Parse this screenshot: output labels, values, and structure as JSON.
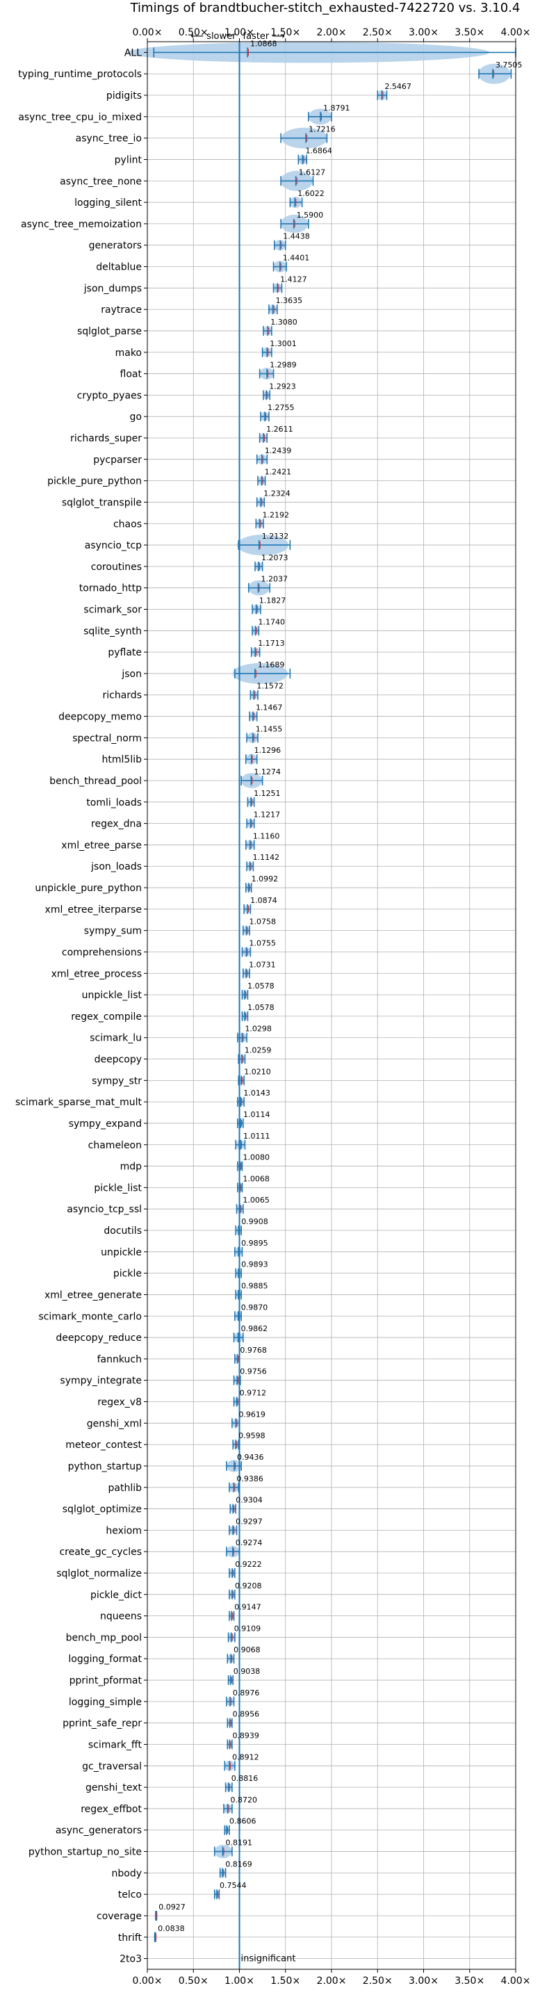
{
  "chart_data": {
    "type": "violin",
    "title": "Timings of brandtbucher-stitch_exhausted-7422720 vs. 3.10.4",
    "xlim": [
      0,
      4
    ],
    "xticks": [
      "0.00×",
      "0.50×",
      "1.00×",
      "1.50×",
      "2.00×",
      "2.50×",
      "3.00×",
      "3.50×",
      "4.00×"
    ],
    "xtick_values": [
      0,
      0.5,
      1,
      1.5,
      2,
      2.5,
      3,
      3.5,
      4
    ],
    "slower_label": "⟵ slower",
    "faster_label": "faster ⟶",
    "insignificant_label": "insignificant",
    "reference_line": 1.0,
    "grid": true,
    "colors": {
      "body": "#aecde8",
      "median": "#1f77b4",
      "mean": "#d62728",
      "refline": "#1f77b4"
    },
    "benchmarks": [
      {
        "name": "ALL",
        "value": 1.0868,
        "label": "1.0868",
        "lo": 0.07,
        "hi": 4.0
      },
      {
        "name": "typing_runtime_protocols",
        "value": 3.7505,
        "label": "3.7505",
        "lo": 3.6,
        "hi": 3.95
      },
      {
        "name": "pidigits",
        "value": 2.5467,
        "label": "2.5467",
        "lo": 2.5,
        "hi": 2.6
      },
      {
        "name": "async_tree_cpu_io_mixed",
        "value": 1.8791,
        "label": "1.8791",
        "lo": 1.75,
        "hi": 2.0
      },
      {
        "name": "async_tree_io",
        "value": 1.7216,
        "label": "1.7216",
        "lo": 1.45,
        "hi": 1.95
      },
      {
        "name": "pylint",
        "value": 1.6864,
        "label": "1.6864",
        "lo": 1.64,
        "hi": 1.73
      },
      {
        "name": "async_tree_none",
        "value": 1.6127,
        "label": "1.6127",
        "lo": 1.45,
        "hi": 1.8
      },
      {
        "name": "logging_silent",
        "value": 1.6022,
        "label": "1.6022",
        "lo": 1.55,
        "hi": 1.68
      },
      {
        "name": "async_tree_memoization",
        "value": 1.59,
        "label": "1.5900",
        "lo": 1.45,
        "hi": 1.75
      },
      {
        "name": "generators",
        "value": 1.4438,
        "label": "1.4438",
        "lo": 1.38,
        "hi": 1.5
      },
      {
        "name": "deltablue",
        "value": 1.4401,
        "label": "1.4401",
        "lo": 1.37,
        "hi": 1.51
      },
      {
        "name": "json_dumps",
        "value": 1.4127,
        "label": "1.4127",
        "lo": 1.37,
        "hi": 1.46
      },
      {
        "name": "raytrace",
        "value": 1.3635,
        "label": "1.3635",
        "lo": 1.32,
        "hi": 1.41
      },
      {
        "name": "sqlglot_parse",
        "value": 1.308,
        "label": "1.3080",
        "lo": 1.26,
        "hi": 1.35
      },
      {
        "name": "mako",
        "value": 1.3001,
        "label": "1.3001",
        "lo": 1.25,
        "hi": 1.35
      },
      {
        "name": "float",
        "value": 1.2989,
        "label": "1.2989",
        "lo": 1.22,
        "hi": 1.37
      },
      {
        "name": "crypto_pyaes",
        "value": 1.2923,
        "label": "1.2923",
        "lo": 1.26,
        "hi": 1.33
      },
      {
        "name": "go",
        "value": 1.2755,
        "label": "1.2755",
        "lo": 1.23,
        "hi": 1.32
      },
      {
        "name": "richards_super",
        "value": 1.2611,
        "label": "1.2611",
        "lo": 1.22,
        "hi": 1.3
      },
      {
        "name": "pycparser",
        "value": 1.2439,
        "label": "1.2439",
        "lo": 1.19,
        "hi": 1.3
      },
      {
        "name": "pickle_pure_python",
        "value": 1.2421,
        "label": "1.2421",
        "lo": 1.2,
        "hi": 1.28
      },
      {
        "name": "sqlglot_transpile",
        "value": 1.2324,
        "label": "1.2324",
        "lo": 1.19,
        "hi": 1.27
      },
      {
        "name": "chaos",
        "value": 1.2192,
        "label": "1.2192",
        "lo": 1.18,
        "hi": 1.26
      },
      {
        "name": "asyncio_tcp",
        "value": 1.2132,
        "label": "1.2132",
        "lo": 0.99,
        "hi": 1.55
      },
      {
        "name": "coroutines",
        "value": 1.2073,
        "label": "1.2073",
        "lo": 1.17,
        "hi": 1.25
      },
      {
        "name": "tornado_http",
        "value": 1.2037,
        "label": "1.2037",
        "lo": 1.1,
        "hi": 1.33
      },
      {
        "name": "scimark_sor",
        "value": 1.1827,
        "label": "1.1827",
        "lo": 1.14,
        "hi": 1.23
      },
      {
        "name": "sqlite_synth",
        "value": 1.174,
        "label": "1.1740",
        "lo": 1.14,
        "hi": 1.21
      },
      {
        "name": "pyflate",
        "value": 1.1713,
        "label": "1.1713",
        "lo": 1.13,
        "hi": 1.22
      },
      {
        "name": "json",
        "value": 1.1689,
        "label": "1.1689",
        "lo": 0.95,
        "hi": 1.55
      },
      {
        "name": "richards",
        "value": 1.1572,
        "label": "1.1572",
        "lo": 1.12,
        "hi": 1.2
      },
      {
        "name": "deepcopy_memo",
        "value": 1.1467,
        "label": "1.1467",
        "lo": 1.11,
        "hi": 1.19
      },
      {
        "name": "spectral_norm",
        "value": 1.1455,
        "label": "1.1455",
        "lo": 1.08,
        "hi": 1.2
      },
      {
        "name": "html5lib",
        "value": 1.1296,
        "label": "1.1296",
        "lo": 1.07,
        "hi": 1.19
      },
      {
        "name": "bench_thread_pool",
        "value": 1.1274,
        "label": "1.1274",
        "lo": 1.02,
        "hi": 1.25
      },
      {
        "name": "tomli_loads",
        "value": 1.1251,
        "label": "1.1251",
        "lo": 1.09,
        "hi": 1.16
      },
      {
        "name": "regex_dna",
        "value": 1.1217,
        "label": "1.1217",
        "lo": 1.08,
        "hi": 1.16
      },
      {
        "name": "xml_etree_parse",
        "value": 1.116,
        "label": "1.1160",
        "lo": 1.07,
        "hi": 1.16
      },
      {
        "name": "json_loads",
        "value": 1.1142,
        "label": "1.1142",
        "lo": 1.08,
        "hi": 1.15
      },
      {
        "name": "unpickle_pure_python",
        "value": 1.0992,
        "label": "1.0992",
        "lo": 1.07,
        "hi": 1.13
      },
      {
        "name": "xml_etree_iterparse",
        "value": 1.0874,
        "label": "1.0874",
        "lo": 1.05,
        "hi": 1.12
      },
      {
        "name": "sympy_sum",
        "value": 1.0758,
        "label": "1.0758",
        "lo": 1.04,
        "hi": 1.11
      },
      {
        "name": "comprehensions",
        "value": 1.0755,
        "label": "1.0755",
        "lo": 1.03,
        "hi": 1.12
      },
      {
        "name": "xml_etree_process",
        "value": 1.0731,
        "label": "1.0731",
        "lo": 1.04,
        "hi": 1.11
      },
      {
        "name": "unpickle_list",
        "value": 1.0578,
        "label": "1.0578",
        "lo": 1.03,
        "hi": 1.09
      },
      {
        "name": "regex_compile",
        "value": 1.0578,
        "label": "1.0578",
        "lo": 1.03,
        "hi": 1.09
      },
      {
        "name": "scimark_lu",
        "value": 1.0298,
        "label": "1.0298",
        "lo": 0.98,
        "hi": 1.08
      },
      {
        "name": "deepcopy",
        "value": 1.0259,
        "label": "1.0259",
        "lo": 0.99,
        "hi": 1.06
      },
      {
        "name": "sympy_str",
        "value": 1.021,
        "label": "1.0210",
        "lo": 0.99,
        "hi": 1.05
      },
      {
        "name": "scimark_sparse_mat_mult",
        "value": 1.0143,
        "label": "1.0143",
        "lo": 0.98,
        "hi": 1.05
      },
      {
        "name": "sympy_expand",
        "value": 1.0114,
        "label": "1.0114",
        "lo": 0.98,
        "hi": 1.04
      },
      {
        "name": "chameleon",
        "value": 1.0111,
        "label": "1.0111",
        "lo": 0.96,
        "hi": 1.06
      },
      {
        "name": "mdp",
        "value": 1.008,
        "label": "1.0080",
        "lo": 0.98,
        "hi": 1.03
      },
      {
        "name": "pickle_list",
        "value": 1.0068,
        "label": "1.0068",
        "lo": 0.98,
        "hi": 1.03
      },
      {
        "name": "asyncio_tcp_ssl",
        "value": 1.0065,
        "label": "1.0065",
        "lo": 0.97,
        "hi": 1.04
      },
      {
        "name": "docutils",
        "value": 0.9908,
        "label": "0.9908",
        "lo": 0.96,
        "hi": 1.02
      },
      {
        "name": "unpickle",
        "value": 0.9895,
        "label": "0.9895",
        "lo": 0.95,
        "hi": 1.03
      },
      {
        "name": "pickle",
        "value": 0.9893,
        "label": "0.9893",
        "lo": 0.96,
        "hi": 1.02
      },
      {
        "name": "xml_etree_generate",
        "value": 0.9885,
        "label": "0.9885",
        "lo": 0.96,
        "hi": 1.02
      },
      {
        "name": "scimark_monte_carlo",
        "value": 0.987,
        "label": "0.9870",
        "lo": 0.95,
        "hi": 1.02
      },
      {
        "name": "deepcopy_reduce",
        "value": 0.9862,
        "label": "0.9862",
        "lo": 0.94,
        "hi": 1.04
      },
      {
        "name": "fannkuch",
        "value": 0.9768,
        "label": "0.9768",
        "lo": 0.95,
        "hi": 1.0
      },
      {
        "name": "sympy_integrate",
        "value": 0.9756,
        "label": "0.9756",
        "lo": 0.94,
        "hi": 1.01
      },
      {
        "name": "regex_v8",
        "value": 0.9712,
        "label": "0.9712",
        "lo": 0.94,
        "hi": 1.0
      },
      {
        "name": "genshi_xml",
        "value": 0.9619,
        "label": "0.9619",
        "lo": 0.92,
        "hi": 1.0
      },
      {
        "name": "meteor_contest",
        "value": 0.9598,
        "label": "0.9598",
        "lo": 0.93,
        "hi": 0.99
      },
      {
        "name": "python_startup",
        "value": 0.9436,
        "label": "0.9436",
        "lo": 0.86,
        "hi": 1.02
      },
      {
        "name": "pathlib",
        "value": 0.9386,
        "label": "0.9386",
        "lo": 0.89,
        "hi": 0.99
      },
      {
        "name": "sqlglot_optimize",
        "value": 0.9304,
        "label": "0.9304",
        "lo": 0.9,
        "hi": 0.96
      },
      {
        "name": "hexiom",
        "value": 0.9297,
        "label": "0.9297",
        "lo": 0.89,
        "hi": 0.97
      },
      {
        "name": "create_gc_cycles",
        "value": 0.9274,
        "label": "0.9274",
        "lo": 0.86,
        "hi": 1.0
      },
      {
        "name": "sqlglot_normalize",
        "value": 0.9222,
        "label": "0.9222",
        "lo": 0.89,
        "hi": 0.95
      },
      {
        "name": "pickle_dict",
        "value": 0.9208,
        "label": "0.9208",
        "lo": 0.89,
        "hi": 0.95
      },
      {
        "name": "nqueens",
        "value": 0.9147,
        "label": "0.9147",
        "lo": 0.89,
        "hi": 0.94
      },
      {
        "name": "bench_mp_pool",
        "value": 0.9109,
        "label": "0.9109",
        "lo": 0.88,
        "hi": 0.95
      },
      {
        "name": "logging_format",
        "value": 0.9068,
        "label": "0.9068",
        "lo": 0.87,
        "hi": 0.94
      },
      {
        "name": "pprint_pformat",
        "value": 0.9038,
        "label": "0.9038",
        "lo": 0.88,
        "hi": 0.93
      },
      {
        "name": "logging_simple",
        "value": 0.8976,
        "label": "0.8976",
        "lo": 0.86,
        "hi": 0.94
      },
      {
        "name": "pprint_safe_repr",
        "value": 0.8956,
        "label": "0.8956",
        "lo": 0.87,
        "hi": 0.92
      },
      {
        "name": "scimark_fft",
        "value": 0.8939,
        "label": "0.8939",
        "lo": 0.87,
        "hi": 0.92
      },
      {
        "name": "gc_traversal",
        "value": 0.8912,
        "label": "0.8912",
        "lo": 0.84,
        "hi": 0.95
      },
      {
        "name": "genshi_text",
        "value": 0.8816,
        "label": "0.8816",
        "lo": 0.85,
        "hi": 0.92
      },
      {
        "name": "regex_effbot",
        "value": 0.872,
        "label": "0.8720",
        "lo": 0.83,
        "hi": 0.92
      },
      {
        "name": "async_generators",
        "value": 0.8606,
        "label": "0.8606",
        "lo": 0.84,
        "hi": 0.89
      },
      {
        "name": "python_startup_no_site",
        "value": 0.8191,
        "label": "0.8191",
        "lo": 0.73,
        "hi": 0.92
      },
      {
        "name": "nbody",
        "value": 0.8169,
        "label": "0.8169",
        "lo": 0.79,
        "hi": 0.85
      },
      {
        "name": "telco",
        "value": 0.7544,
        "label": "0.7544",
        "lo": 0.73,
        "hi": 0.78
      },
      {
        "name": "coverage",
        "value": 0.0927,
        "label": "0.0927",
        "lo": 0.09,
        "hi": 0.1
      },
      {
        "name": "thrift",
        "value": 0.0838,
        "label": "0.0838",
        "lo": 0.08,
        "hi": 0.09
      },
      {
        "name": "2to3",
        "value": null,
        "label": "",
        "lo": null,
        "hi": null
      }
    ]
  }
}
